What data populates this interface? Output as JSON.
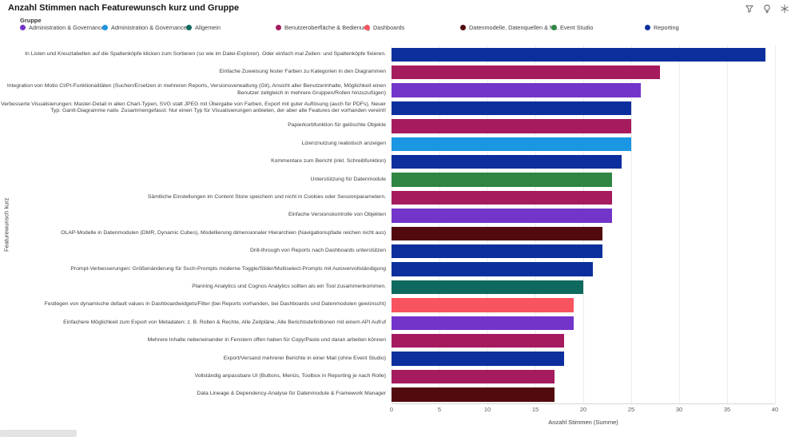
{
  "header": {
    "title": "Anzahl Stimmen nach Featurewunsch kurz und Gruppe",
    "icons": [
      "filter-icon",
      "lightbulb-icon",
      "snowflake-icon"
    ]
  },
  "legend": {
    "label": "Gruppe",
    "items": [
      {
        "label": "Administration & Governance",
        "color": "#7334c9"
      },
      {
        "label": "Administration & Governance",
        "color": "#1b96e3"
      },
      {
        "label": "Allgemein",
        "color": "#0e6a5e"
      },
      {
        "label": "Benutzeroberfläche & Bedienung",
        "color": "#a51b5e"
      },
      {
        "label": "Dashboards",
        "color": "#f8545f"
      },
      {
        "label": "Datenmodelle, Datenquellen & M...",
        "color": "#520a0e"
      },
      {
        "label": "Event Studio",
        "color": "#2f8542"
      },
      {
        "label": "Reporting",
        "color": "#0c2f9d"
      }
    ]
  },
  "chart_data": {
    "type": "bar",
    "orientation": "horizontal",
    "title": "Anzahl Stimmen nach Featurewunsch kurz und Gruppe",
    "xlabel": "Anzahl Stimmen (Summe)",
    "ylabel": "Featurewunsch kurz",
    "xlim": [
      0,
      40
    ],
    "xticks": [
      0,
      5,
      10,
      15,
      20,
      25,
      30,
      35,
      40
    ],
    "grid": true,
    "legend_position": "top",
    "bars": [
      {
        "label": "In Listen und Kreuztabellen auf die Spaltenköpfe klicken zum Sortieren (so wie im Datei-Explorer). Oder einfach mal Zeilen- und Spaltenköpfe fixieren.",
        "value": 39,
        "group": "Reporting",
        "color": "#0c2f9d"
      },
      {
        "label": "Einfache Zuweisung fester Farben zu Kategorien in den Diagrammen",
        "value": 28,
        "group": "Benutzeroberfläche & Bedienung",
        "color": "#a51b5e"
      },
      {
        "label": "Integration von Motio CI/PI-Funktionalitäten (Suchen/Ersetzen in mehreren Reports, Versionsverwaltung (Git), Ansicht aller Benutzerinhalte, Möglichkeit einen Benutzer zeitgleich in mehrere Gruppen/Rollen hinzuzufügen)",
        "value": 26,
        "group": "Administration & Governance",
        "color": "#7334c9"
      },
      {
        "label": "Verbesserte Visualisierungen: Master-Detail in allen Chart-Typen, SVG statt JPEG mit Übergabe von Farben, Export mit guter Auflösung (auch für PDFs), Neuer Typ: Gantt-Diagramme nativ. Zusammengefasst: Nur einen Typ für Visualisierungen anbieten, der aber alle Features der vorhanden vereint!",
        "value": 25,
        "group": "Reporting",
        "color": "#0c2f9d"
      },
      {
        "label": "Papierkorbfunktion für gelöschte Objekte",
        "value": 25,
        "group": "Benutzeroberfläche & Bedienung",
        "color": "#a51b5e"
      },
      {
        "label": "Lizenznutzung realistisch anzeigen",
        "value": 25,
        "group": "Administration & Governance",
        "color": "#1b96e3"
      },
      {
        "label": "Kommentare zum Bericht (inkl. Schreibfunktion)",
        "value": 24,
        "group": "Reporting",
        "color": "#0c2f9d"
      },
      {
        "label": "Unterstützung für Datenmodule",
        "value": 23,
        "group": "Event Studio",
        "color": "#2f8542"
      },
      {
        "label": "Sämtliche Einstellungen im Content Store speichern und nicht in Cookies oder Sessionparametern.",
        "value": 23,
        "group": "Benutzeroberfläche & Bedienung",
        "color": "#a51b5e"
      },
      {
        "label": "Einfache Versionskontrolle von Objekten",
        "value": 23,
        "group": "Administration & Governance",
        "color": "#7334c9"
      },
      {
        "label": "OLAP-Modelle in Datenmodulen (DMR, Dynamic Cubes), Modellierung dimensionaler Hierarchien (Navigationspfade reichen nicht aus)",
        "value": 22,
        "group": "Datenmodelle, Datenquellen & M...",
        "color": "#520a0e"
      },
      {
        "label": "Drill-through von Reports nach Dashboards unterstützen",
        "value": 22,
        "group": "Reporting",
        "color": "#0c2f9d"
      },
      {
        "label": "Prompt-Verbesserungen: Größenänderung für Such-Prompts moderne Toggle/Slider/Multiselect-Prompts mit Autovervollständigung",
        "value": 21,
        "group": "Reporting",
        "color": "#0c2f9d"
      },
      {
        "label": "Planning Analytics und Cognos Analytics sollten als ein Tool zusammenkommen.",
        "value": 20,
        "group": "Allgemein",
        "color": "#0e6a5e"
      },
      {
        "label": "Festlegen von dynamische default values in Dashboardwidgets/Filter (bei Reports vorhanden, bei Dashboards und Datenmodulen gewünscht)",
        "value": 19,
        "group": "Dashboards",
        "color": "#f8545f"
      },
      {
        "label": "Einfachere Möglichkeit zum Export von Metadaten: z. B. Rollen & Rechte, Alle Zeitpläne, Alle Berichtsdefinitionen mit einem API Aufruf",
        "value": 19,
        "group": "Administration & Governance",
        "color": "#7334c9"
      },
      {
        "label": "Mehrere Inhalte nebeneinander in Fenstern offen haben für Copy/Paste und daran arbeiten können",
        "value": 18,
        "group": "Benutzeroberfläche & Bedienung",
        "color": "#a51b5e"
      },
      {
        "label": "Export/Versand mehrerer Berichte in einer Mail (ohne Event Studio)",
        "value": 18,
        "group": "Reporting",
        "color": "#0c2f9d"
      },
      {
        "label": "Vollständig anpassbare UI (Buttons, Menüs, Toolbox in Reporting je nach Rolle)",
        "value": 17,
        "group": "Benutzeroberfläche & Bedienung",
        "color": "#a51b5e"
      },
      {
        "label": "Data Lineage & Dependency-Analyse für Datenmodule & Framework Manager",
        "value": 17,
        "group": "Datenmodelle, Datenquellen & M...",
        "color": "#520a0e"
      }
    ]
  }
}
